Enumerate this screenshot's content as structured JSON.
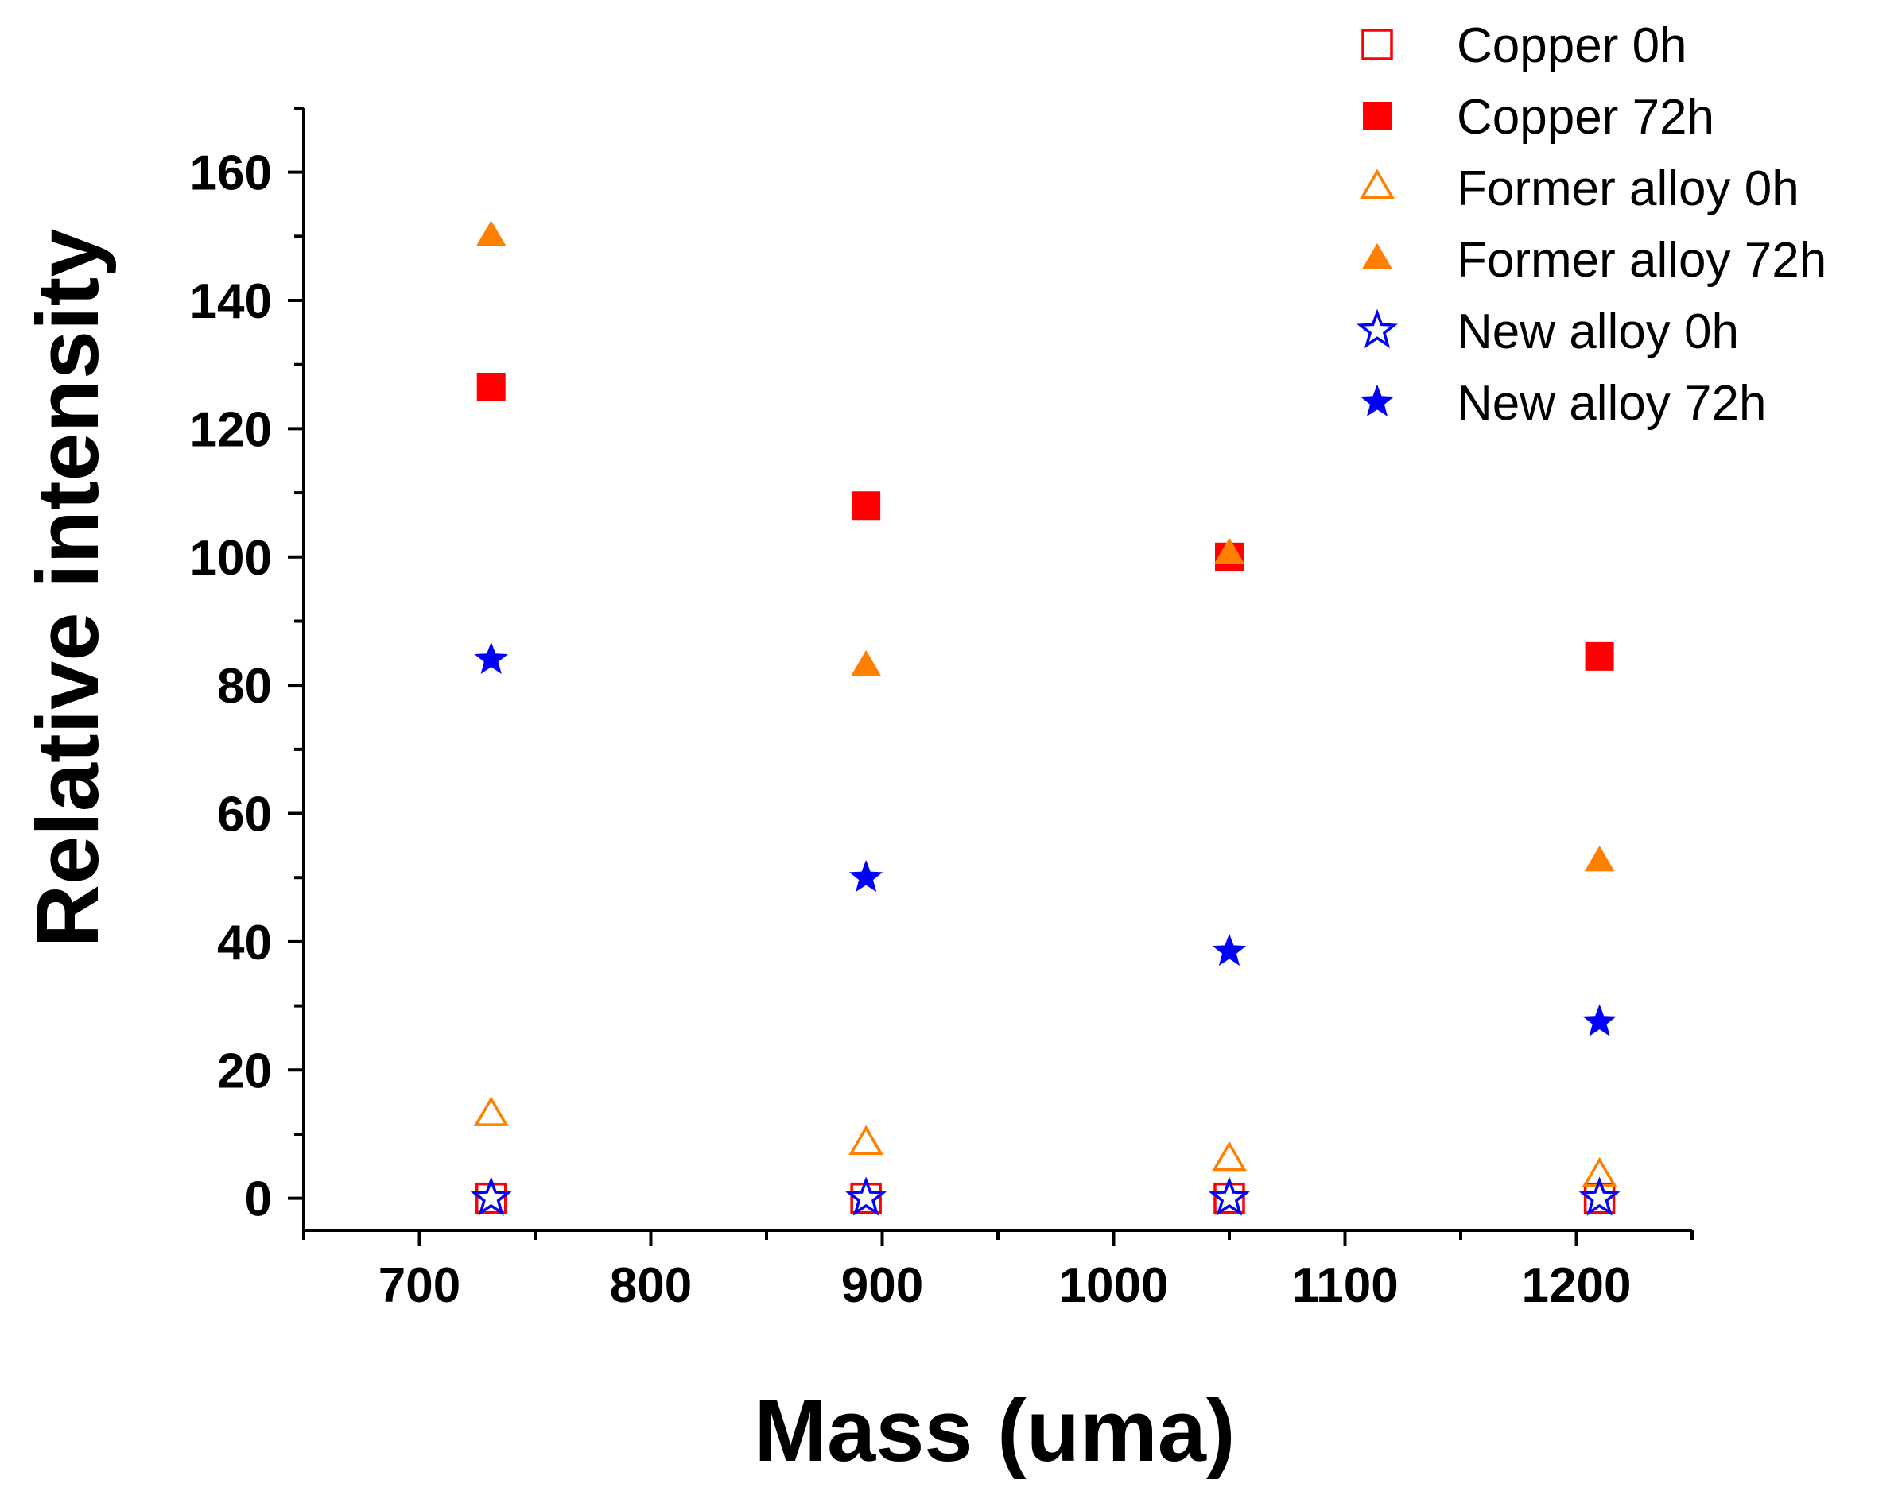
{
  "chart_data": {
    "type": "scatter",
    "title": "",
    "xlabel": "Mass (uma)",
    "ylabel": "Relative intensity",
    "xlim": [
      650,
      1250
    ],
    "ylim": [
      -5,
      170
    ],
    "xticks": [
      700,
      800,
      900,
      1000,
      1100,
      1200
    ],
    "yticks": [
      0,
      20,
      40,
      60,
      80,
      100,
      120,
      140,
      160
    ],
    "legend_position": "top-right",
    "grid": false,
    "series": [
      {
        "name": "Copper 0h",
        "marker": "square",
        "filled": false,
        "color": "#ff0000",
        "x": [
          731,
          893,
          1050,
          1210
        ],
        "y": [
          0,
          0,
          0,
          0
        ]
      },
      {
        "name": "Copper 72h",
        "marker": "square",
        "filled": true,
        "color": "#ff0000",
        "x": [
          731,
          893,
          1050,
          1210
        ],
        "y": [
          126.5,
          108,
          100,
          84.5
        ]
      },
      {
        "name": "Former alloy 0h",
        "marker": "triangle",
        "filled": false,
        "color": "#ff7f00",
        "x": [
          731,
          893,
          1050,
          1210
        ],
        "y": [
          13,
          8.5,
          6,
          3.5
        ]
      },
      {
        "name": "Former alloy 72h",
        "marker": "triangle",
        "filled": true,
        "color": "#ff7f00",
        "x": [
          731,
          893,
          1050,
          1210
        ],
        "y": [
          150,
          83,
          100.5,
          52.5
        ]
      },
      {
        "name": "New alloy 0h",
        "marker": "star",
        "filled": false,
        "color": "#0000ff",
        "x": [
          731,
          893,
          1050,
          1210
        ],
        "y": [
          0,
          0,
          0,
          0
        ]
      },
      {
        "name": "New alloy 72h",
        "marker": "star",
        "filled": true,
        "color": "#0000ff",
        "x": [
          731,
          893,
          1050,
          1210
        ],
        "y": [
          84,
          50,
          38.5,
          27.5
        ]
      }
    ]
  }
}
